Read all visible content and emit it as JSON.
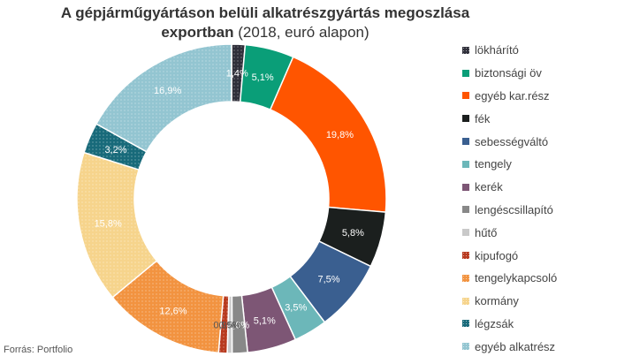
{
  "title_bold": "A gépjárműgyártáson belüli alkatrészgyártás megoszlása",
  "title_line2_bold": "exportban",
  "title_line2_normal": " (2018, euró alapon)",
  "source": "Forrás:  Portfolio",
  "chart_data": {
    "type": "pie",
    "variant": "donut",
    "legend_position": "right",
    "slices": [
      {
        "label": "lökhárító",
        "value": 1.4,
        "data_label": "1,4%",
        "color": "#2f2f3a",
        "pattern": "dots"
      },
      {
        "label": "biztonsági öv",
        "value": 5.1,
        "data_label": "5,1%",
        "color": "#0a9e78",
        "pattern": "none"
      },
      {
        "label": "egyéb kar.rész",
        "value": 19.8,
        "data_label": "19,8%",
        "color": "#ff5500",
        "pattern": "none"
      },
      {
        "label": "fék",
        "value": 5.8,
        "data_label": "5,8%",
        "color": "#1b1f1e",
        "pattern": "none"
      },
      {
        "label": "sebességváltó",
        "value": 7.5,
        "data_label": "7,5%",
        "color": "#3a5f90",
        "pattern": "none"
      },
      {
        "label": "tengely",
        "value": 3.5,
        "data_label": "3,5%",
        "color": "#6cb7b9",
        "pattern": "none"
      },
      {
        "label": "kerék",
        "value": 5.1,
        "data_label": "5,1%",
        "color": "#7d5675",
        "pattern": "none"
      },
      {
        "label": "lengéscsillapító",
        "value": 1.6,
        "data_label": "1,6%",
        "color": "#888888",
        "pattern": "none"
      },
      {
        "label": "hűtő",
        "value": 0.5,
        "data_label": "0,5%",
        "color": "#c9c9c9",
        "pattern": "none"
      },
      {
        "label": "kipufogó",
        "value": 0.9,
        "data_label": "0,9%",
        "color": "#b83a1e",
        "pattern": "dots"
      },
      {
        "label": "tengelykapcsoló",
        "value": 12.6,
        "data_label": "12,6%",
        "color": "#f29340",
        "pattern": "dots"
      },
      {
        "label": "kormány",
        "value": 15.8,
        "data_label": "15,8%",
        "color": "#f6d48c",
        "pattern": "dots"
      },
      {
        "label": "légzsák",
        "value": 3.2,
        "data_label": "3,2%",
        "color": "#186a7a",
        "pattern": "dots"
      },
      {
        "label": "egyéb alkatrész",
        "value": 16.9,
        "data_label": "16,9%",
        "color": "#93c5d1",
        "pattern": "dots"
      }
    ]
  }
}
